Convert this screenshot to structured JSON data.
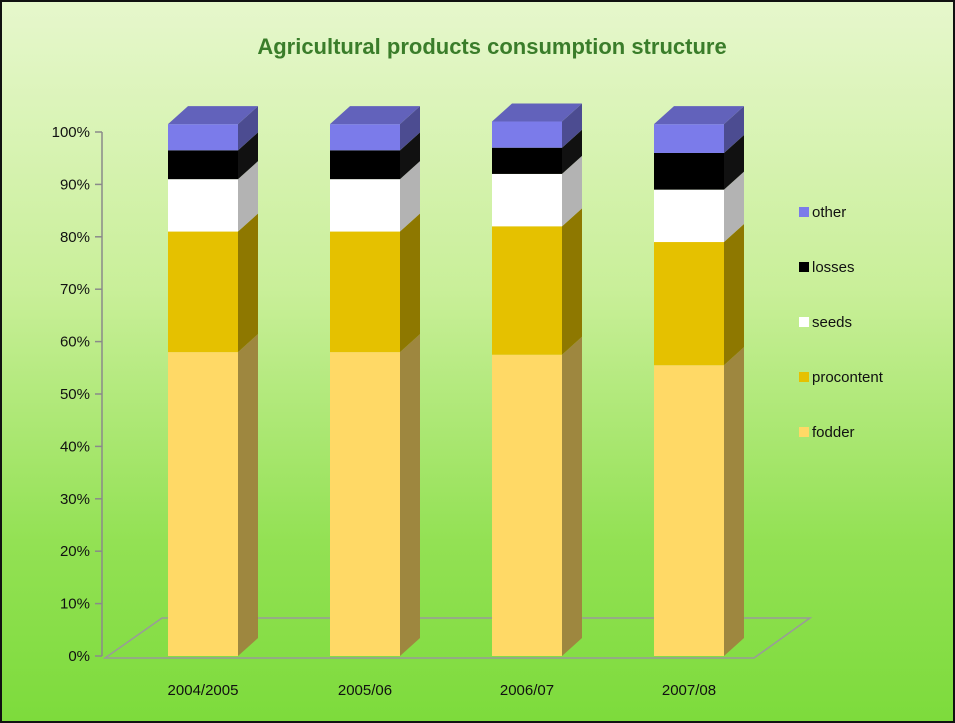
{
  "chart_data": {
    "type": "bar",
    "stacked": true,
    "percent": true,
    "three_d": true,
    "title": "Agricultural products consumption structure",
    "categories": [
      "2004/2005",
      "2005/06",
      "2006/07",
      "2007/08"
    ],
    "y_ticks": [
      "0%",
      "10%",
      "20%",
      "30%",
      "40%",
      "50%",
      "60%",
      "70%",
      "80%",
      "90%",
      "100%"
    ],
    "ylim": [
      0,
      100
    ],
    "legend_position": "right",
    "series": [
      {
        "name": "fodder",
        "color": "#ffd966",
        "values": [
          58,
          58,
          57.5,
          55.5
        ]
      },
      {
        "name": "procontent",
        "color": "#e5c100",
        "values": [
          23,
          23,
          24.5,
          23.5
        ]
      },
      {
        "name": "seeds",
        "color": "#ffffff",
        "values": [
          10,
          10,
          10,
          10
        ]
      },
      {
        "name": "losses",
        "color": "#000000",
        "values": [
          5.5,
          5.5,
          5,
          7
        ]
      },
      {
        "name": "other",
        "color": "#7b7bea",
        "values": [
          5,
          5,
          5,
          5.5
        ]
      }
    ]
  }
}
